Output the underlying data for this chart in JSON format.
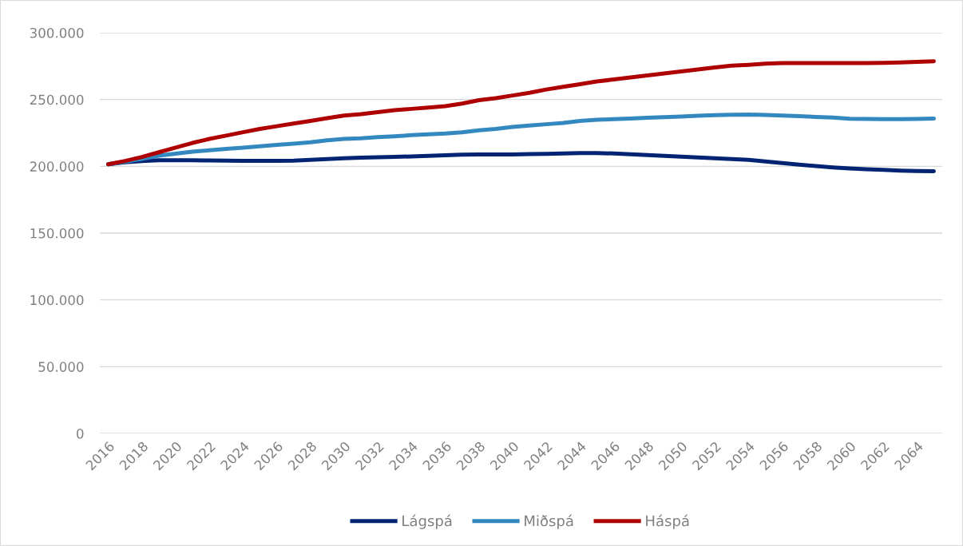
{
  "chart_data": {
    "type": "line",
    "categories": [
      "2016",
      null,
      "2018",
      null,
      "2020",
      null,
      "2022",
      null,
      "2024",
      null,
      "2026",
      null,
      "2028",
      null,
      "2030",
      null,
      "2032",
      null,
      "2034",
      null,
      "2036",
      null,
      "2038",
      null,
      "2040",
      null,
      "2042",
      null,
      "2044",
      null,
      "2046",
      null,
      "2048",
      null,
      "2050",
      null,
      "2052",
      null,
      "2054",
      null,
      "2056",
      null,
      "2058",
      null,
      "2060",
      null,
      "2062",
      null,
      "2064",
      null
    ],
    "series": [
      {
        "name": "Lágspá",
        "color": "#002473",
        "values": [
          201500,
          203000,
          204000,
          204500,
          204500,
          204500,
          204400,
          204200,
          204100,
          204100,
          204100,
          204300,
          204800,
          205500,
          206000,
          206500,
          206800,
          207000,
          207400,
          207800,
          208200,
          208700,
          208900,
          208900,
          208900,
          209100,
          209300,
          209600,
          209900,
          209900,
          209600,
          209000,
          208400,
          207800,
          207200,
          206600,
          206000,
          205400,
          204800,
          203600,
          202400,
          201300,
          200200,
          199200,
          198400,
          197800,
          197300,
          196800,
          196500,
          196300
        ]
      },
      {
        "name": "Miðspá",
        "color": "#3488c0",
        "values": [
          201500,
          203500,
          205500,
          208000,
          209500,
          211000,
          212000,
          213000,
          214000,
          215000,
          216000,
          217000,
          218000,
          219500,
          220500,
          221000,
          221800,
          222500,
          223300,
          224000,
          224500,
          225500,
          227000,
          228000,
          229500,
          230500,
          231500,
          232500,
          234000,
          234800,
          235300,
          235800,
          236300,
          236800,
          237300,
          237800,
          238300,
          238600,
          238800,
          238500,
          238000,
          237500,
          237000,
          236500,
          235600,
          235400,
          235300,
          235300,
          235500,
          235700
        ]
      },
      {
        "name": "Háspá",
        "color": "#ae0000",
        "values": [
          201500,
          204000,
          207000,
          210500,
          214000,
          217500,
          220500,
          223000,
          225500,
          228000,
          230000,
          232000,
          234000,
          236000,
          238000,
          239000,
          240500,
          242000,
          243000,
          244000,
          245000,
          247000,
          249500,
          251000,
          253000,
          255000,
          257500,
          259500,
          261500,
          263500,
          265000,
          266500,
          268000,
          269500,
          271000,
          272500,
          274000,
          275300,
          276000,
          276800,
          277300,
          277300,
          277300,
          277300,
          277300,
          277300,
          277500,
          277800,
          278200,
          278700
        ]
      }
    ],
    "ylim": [
      0,
      300000
    ],
    "yticks": [
      0,
      {
        "value": 50000,
        "label": "50.000"
      },
      {
        "value": 100000,
        "label": "100.000"
      },
      {
        "value": 150000,
        "label": "150.000"
      },
      {
        "value": 200000,
        "label": "200.000"
      },
      {
        "value": 250000,
        "label": "250.000"
      },
      {
        "value": 300000,
        "label": "300.000"
      }
    ],
    "grid": "y",
    "legend": "bottom",
    "marker": "none",
    "line_style": "solid"
  }
}
